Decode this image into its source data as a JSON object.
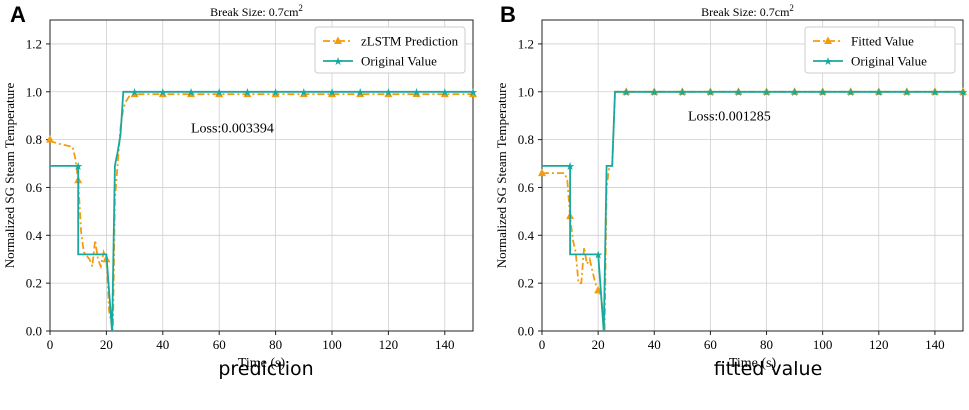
{
  "panels": [
    {
      "letter": "A",
      "caption": "prediction"
    },
    {
      "letter": "B",
      "caption": "fitted value"
    }
  ],
  "colors": {
    "prediction": "#f39c12",
    "original": "#17a9a0"
  },
  "chart_data": [
    {
      "type": "line",
      "title_prefix": "Break Size: 0.7cm",
      "title_sup": "2",
      "xlabel": "Time (s)",
      "ylabel": "Normalized SG Steam Temperature",
      "xlim": [
        0,
        150
      ],
      "ylim": [
        0,
        1.3
      ],
      "xticks": [
        0,
        20,
        40,
        60,
        80,
        100,
        120,
        140
      ],
      "yticks": [
        0.0,
        0.2,
        0.4,
        0.6,
        0.8,
        1.0,
        1.2
      ],
      "annotation": "Loss:0.003394",
      "annotation_pos": [
        50,
        0.83
      ],
      "legend_position": "top-right",
      "series": [
        {
          "name": "zLSTM Prediction",
          "color_key": "prediction",
          "style": "dashdot",
          "marker": "triangle",
          "x": [
            0,
            1,
            4,
            8,
            9,
            10,
            11,
            12,
            14,
            15,
            16,
            17,
            18,
            19,
            20,
            21,
            22,
            22.3,
            23,
            24,
            25,
            26,
            27,
            28,
            30,
            40,
            50,
            60,
            70,
            80,
            90,
            100,
            110,
            120,
            130,
            140,
            150
          ],
          "y": [
            0.8,
            0.79,
            0.78,
            0.77,
            0.72,
            0.63,
            0.42,
            0.33,
            0.3,
            0.27,
            0.38,
            0.3,
            0.27,
            0.33,
            0.3,
            0.08,
            0.02,
            0.0,
            0.55,
            0.7,
            0.85,
            0.93,
            0.96,
            0.98,
            0.99,
            0.99,
            0.99,
            0.99,
            0.99,
            0.99,
            0.99,
            0.99,
            0.99,
            0.99,
            0.99,
            0.99,
            0.99
          ],
          "marker_x": [
            0,
            10,
            20,
            30,
            40,
            50,
            60,
            70,
            80,
            90,
            100,
            110,
            120,
            130,
            140,
            150
          ]
        },
        {
          "name": "Original Value",
          "color_key": "original",
          "style": "solid",
          "marker": "star",
          "x": [
            0,
            10,
            10.01,
            20,
            20.01,
            22,
            22.01,
            23,
            24,
            25,
            26,
            150
          ],
          "y": [
            0.69,
            0.69,
            0.32,
            0.32,
            0.32,
            0.0,
            0.0,
            0.69,
            0.75,
            0.82,
            1.0,
            1.0
          ],
          "marker_x": [
            10,
            30,
            40,
            50,
            60,
            70,
            80,
            90,
            100,
            110,
            120,
            130,
            140,
            150
          ]
        }
      ]
    },
    {
      "type": "line",
      "title_prefix": "Break Size: 0.7cm",
      "title_sup": "2",
      "xlabel": "Time (s)",
      "ylabel": "Normalized SG Steam Temperature",
      "xlim": [
        0,
        150
      ],
      "ylim": [
        0,
        1.3
      ],
      "xticks": [
        0,
        20,
        40,
        60,
        80,
        100,
        120,
        140
      ],
      "yticks": [
        0.0,
        0.2,
        0.4,
        0.6,
        0.8,
        1.0,
        1.2
      ],
      "annotation": "Loss:0.001285",
      "annotation_pos": [
        52,
        0.88
      ],
      "legend_position": "top-right",
      "series": [
        {
          "name": "Fitted Value",
          "color_key": "prediction",
          "style": "dashdot",
          "marker": "triangle",
          "x": [
            0,
            5,
            8,
            9,
            10,
            11,
            12,
            13,
            14,
            15,
            16,
            17,
            18,
            19,
            20,
            21,
            22,
            22.3,
            23,
            24,
            25,
            26,
            30,
            40,
            50,
            60,
            70,
            80,
            90,
            100,
            110,
            120,
            130,
            140,
            150
          ],
          "y": [
            0.66,
            0.66,
            0.66,
            0.63,
            0.48,
            0.38,
            0.33,
            0.2,
            0.2,
            0.35,
            0.28,
            0.3,
            0.25,
            0.2,
            0.17,
            0.15,
            0.05,
            0.0,
            0.6,
            0.69,
            0.69,
            1.0,
            1.0,
            1.0,
            1.0,
            1.0,
            1.0,
            1.0,
            1.0,
            1.0,
            1.0,
            1.0,
            1.0,
            1.0,
            1.0
          ],
          "marker_x": [
            0,
            10,
            20,
            30,
            40,
            50,
            60,
            70,
            80,
            90,
            100,
            110,
            120,
            130,
            140,
            150
          ]
        },
        {
          "name": "Original Value",
          "color_key": "original",
          "style": "solid",
          "marker": "star",
          "x": [
            0,
            10,
            10.01,
            20,
            20.01,
            22,
            22.01,
            23,
            24,
            25,
            26,
            150
          ],
          "y": [
            0.69,
            0.69,
            0.32,
            0.32,
            0.32,
            0.0,
            0.0,
            0.69,
            0.69,
            0.69,
            1.0,
            1.0
          ],
          "marker_x": [
            10,
            20,
            30,
            40,
            50,
            60,
            70,
            80,
            90,
            100,
            110,
            120,
            130,
            140,
            150
          ]
        }
      ]
    }
  ]
}
